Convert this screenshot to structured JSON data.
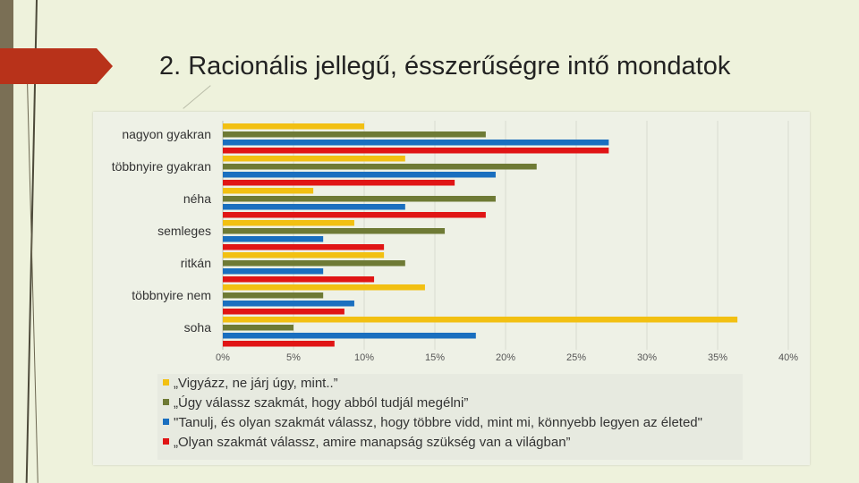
{
  "slide": {
    "title": "2. Racionális jellegű, ésszerűségre intő mondatok"
  },
  "colors": {
    "background": "#eef2dc",
    "accent_arrow": "#b8321a"
  },
  "chart_data": {
    "type": "bar",
    "orientation": "horizontal",
    "categories": [
      "nagyon gyakran",
      "többnyire gyakran",
      "néha",
      "semleges",
      "ritkán",
      "többnyire nem",
      "soha"
    ],
    "xlim": [
      0,
      40
    ],
    "x_ticks": [
      "0%",
      "5%",
      "10%",
      "15%",
      "20%",
      "25%",
      "30%",
      "35%",
      "40%"
    ],
    "grid": "vertical",
    "legend_position": "bottom",
    "series": [
      {
        "name": "„Vigyázz, ne járj úgy, mint..”",
        "color": "#f2c012",
        "values": [
          10,
          12.9,
          6.4,
          9.3,
          11.4,
          14.3,
          36.4
        ]
      },
      {
        "name": "„Úgy válassz szakmát, hogy abból tudjál megélni”",
        "color": "#6e7a35",
        "values": [
          18.6,
          22.2,
          19.3,
          15.7,
          12.9,
          7.1,
          5
        ]
      },
      {
        "name": "\"Tanulj, és olyan szakmát válassz, hogy többre vidd, mint mi, könnyebb legyen az életed\"",
        "color": "#1a6fbf",
        "values": [
          27.3,
          19.3,
          12.9,
          7.1,
          7.1,
          9.3,
          17.9
        ]
      },
      {
        "name": "„Olyan szakmát válassz, amire manapság szükség van a világban”",
        "color": "#e01515",
        "values": [
          27.3,
          16.4,
          18.6,
          11.4,
          10.7,
          8.6,
          7.9
        ]
      }
    ]
  }
}
